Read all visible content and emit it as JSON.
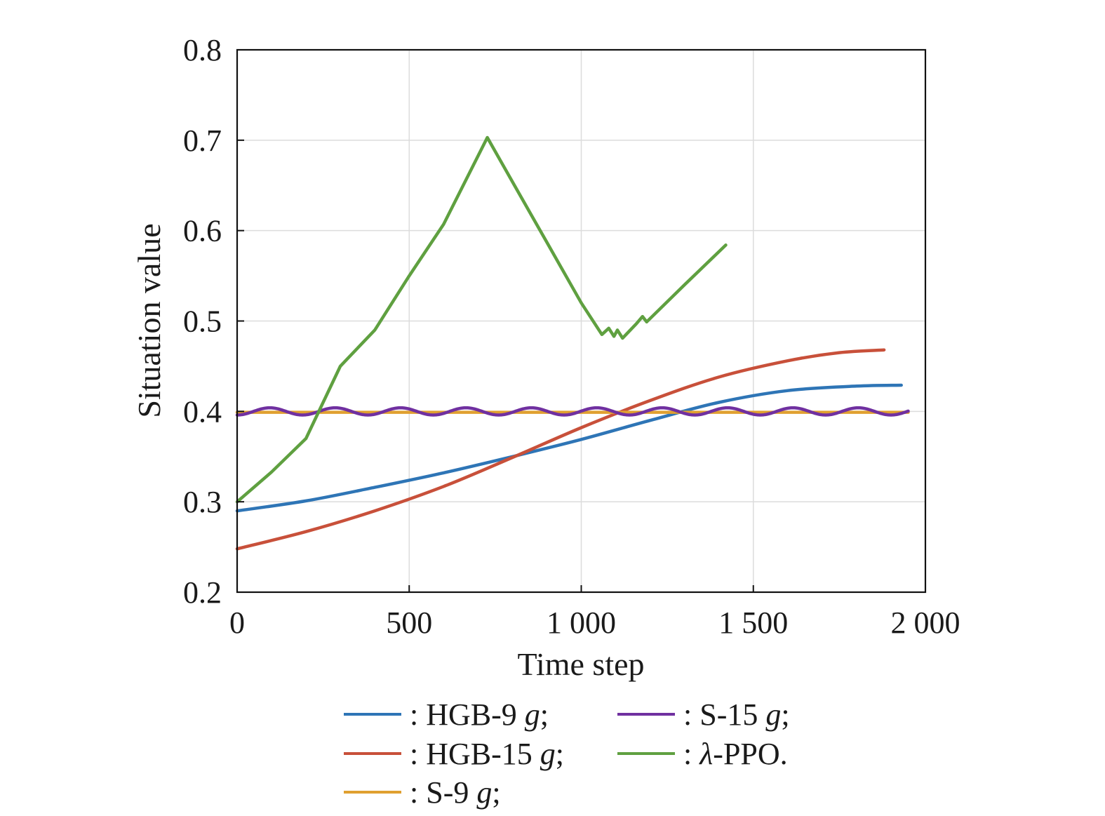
{
  "chart_data": {
    "type": "line",
    "title": "",
    "xlabel": "Time step",
    "ylabel": "Situation value",
    "xlim": [
      0,
      2000
    ],
    "ylim": [
      0.2,
      0.8
    ],
    "xticks": [
      0,
      500,
      1000,
      1500,
      2000
    ],
    "xtick_labels": [
      "0",
      "500",
      "1 000",
      "1 500",
      "2 000"
    ],
    "yticks": [
      0.2,
      0.3,
      0.4,
      0.5,
      0.6,
      0.7,
      0.8
    ],
    "ytick_labels": [
      "0.2",
      "0.3",
      "0.4",
      "0.5",
      "0.6",
      "0.7",
      "0.8"
    ],
    "grid": true,
    "legend_position": "bottom",
    "series": [
      {
        "name": "HGB-9 g",
        "legend_prefix": ": HGB-9 ",
        "legend_unit": "g",
        "legend_suffix": ";",
        "color": "#2E75B6",
        "x": [
          0,
          200,
          400,
          600,
          800,
          1000,
          1200,
          1400,
          1600,
          1800,
          1930
        ],
        "y": [
          0.29,
          0.301,
          0.316,
          0.332,
          0.35,
          0.369,
          0.39,
          0.41,
          0.423,
          0.428,
          0.429
        ]
      },
      {
        "name": "HGB-15 g",
        "legend_prefix": ": HGB-15 ",
        "legend_unit": "g",
        "legend_suffix": ";",
        "color": "#C8503A",
        "x": [
          0,
          200,
          400,
          600,
          800,
          1000,
          1200,
          1400,
          1600,
          1750,
          1880
        ],
        "y": [
          0.248,
          0.267,
          0.29,
          0.317,
          0.349,
          0.382,
          0.412,
          0.438,
          0.456,
          0.465,
          0.468
        ]
      },
      {
        "name": "S-9 g",
        "legend_prefix": ": S-9 ",
        "legend_unit": "g",
        "legend_suffix": ";",
        "color": "#E0A030",
        "x": [
          0,
          1950
        ],
        "y": [
          0.399,
          0.399
        ]
      },
      {
        "name": "S-15 g",
        "legend_prefix": ": S-15 ",
        "legend_unit": "g",
        "legend_suffix": ";",
        "color": "#7030A0",
        "oscillation": {
          "center": 0.4,
          "amplitude": 0.004,
          "period": 190
        },
        "x": [
          0,
          1950
        ],
        "y": [
          0.4,
          0.4
        ]
      },
      {
        "name": "λ-PPO",
        "legend_prefix": ": ",
        "legend_unit": "λ",
        "legend_suffix": "-PPO.",
        "color": "#5FA040",
        "x": [
          0,
          100,
          200,
          300,
          400,
          500,
          600,
          727,
          800,
          900,
          1000,
          1060,
          1080,
          1095,
          1105,
          1120,
          1160,
          1178,
          1190,
          1300,
          1420
        ],
        "y": [
          0.3,
          0.333,
          0.37,
          0.45,
          0.49,
          0.55,
          0.607,
          0.703,
          0.654,
          0.587,
          0.52,
          0.485,
          0.492,
          0.483,
          0.49,
          0.481,
          0.497,
          0.505,
          0.499,
          0.54,
          0.584
        ]
      }
    ],
    "legend_order": [
      0,
      3,
      1,
      4,
      2
    ]
  }
}
